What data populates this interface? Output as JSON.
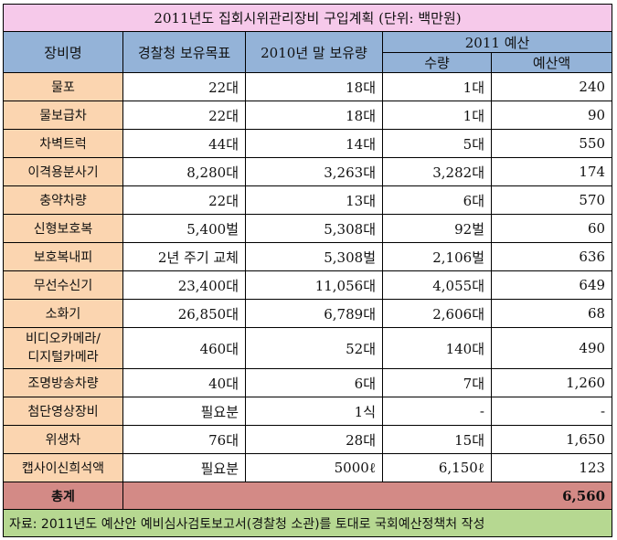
{
  "title": "2011년도 집회시위관리장비 구입계획 (단위: 백만원)",
  "headers": {
    "equipment": "장비명",
    "police_target": "경찰청 보유목표",
    "held_2010": "2010년 말 보유량",
    "budget_2011": "2011 예산",
    "quantity": "수량",
    "amount": "예산액"
  },
  "rows": [
    {
      "name": "물포",
      "target": "22대",
      "held": "18대",
      "qty": "1대",
      "amount": "240"
    },
    {
      "name": "물보급차",
      "target": "22대",
      "held": "18대",
      "qty": "1대",
      "amount": "90"
    },
    {
      "name": "차벽트럭",
      "target": "44대",
      "held": "14대",
      "qty": "5대",
      "amount": "550"
    },
    {
      "name": "이격용분사기",
      "target": "8,280대",
      "held": "3,263대",
      "qty": "3,282대",
      "amount": "174"
    },
    {
      "name": "충약차량",
      "target": "22대",
      "held": "13대",
      "qty": "6대",
      "amount": "570"
    },
    {
      "name": "신형보호복",
      "target": "5,400벌",
      "held": "5,308대",
      "qty": "92벌",
      "amount": "60"
    },
    {
      "name": "보호복내피",
      "target": "2년 주기 교체",
      "held": "5,308벌",
      "qty": "2,106벌",
      "amount": "636"
    },
    {
      "name": "무선수신기",
      "target": "23,400대",
      "held": "11,056대",
      "qty": "4,055대",
      "amount": "649"
    },
    {
      "name": "소화기",
      "target": "26,850대",
      "held": "6,789대",
      "qty": "2,606대",
      "amount": "68"
    },
    {
      "name": "비디오카메라/\n디지털카메라",
      "target": "460대",
      "held": "52대",
      "qty": "140대",
      "amount": "490"
    },
    {
      "name": "조명방송차량",
      "target": "40대",
      "held": "6대",
      "qty": "7대",
      "amount": "1,260"
    },
    {
      "name": "첨단영상장비",
      "target": "필요분",
      "held": "1식",
      "qty": "-",
      "amount": "-"
    },
    {
      "name": "위생차",
      "target": "76대",
      "held": "28대",
      "qty": "15대",
      "amount": "1,650"
    },
    {
      "name": "캡사이신희석액",
      "target": "필요분",
      "held": "5000ℓ",
      "qty": "6,150ℓ",
      "amount": "123"
    }
  ],
  "total": {
    "label": "총계",
    "amount": "6,560"
  },
  "note": "자료: 2011년도 예산안 예비심사검토보고서(경찰청 소관)를 토대로 국회예산정책처 작성"
}
